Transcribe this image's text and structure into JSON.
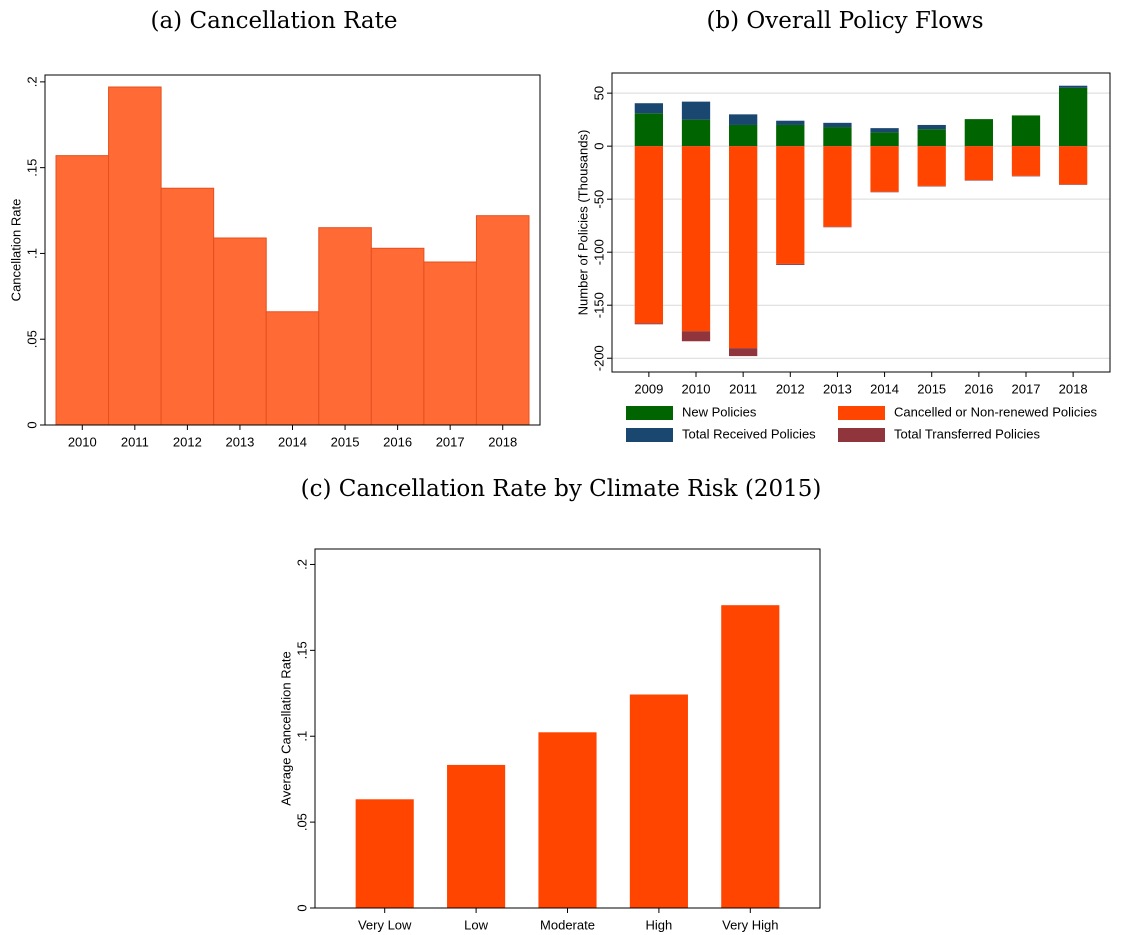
{
  "chart_data": [
    {
      "type": "bar",
      "title": "(a) Cancellation Rate",
      "ylabel": "Cancellation Rate",
      "categories": [
        "2010",
        "2011",
        "2012",
        "2013",
        "2014",
        "2015",
        "2016",
        "2017",
        "2018"
      ],
      "values": [
        0.157,
        0.197,
        0.138,
        0.109,
        0.066,
        0.115,
        0.103,
        0.095,
        0.122
      ],
      "color": "#ff6a35",
      "edgecolor": "#e5501f",
      "ylim": [
        0,
        0.204
      ],
      "yticks": [
        0,
        {
          "value": 0.05,
          "label": ".05"
        },
        {
          "value": 0.1,
          "label": ".1"
        },
        {
          "value": 0.15,
          "label": ".15"
        },
        {
          "value": 0.2,
          "label": ".2"
        }
      ],
      "grid": false
    },
    {
      "type": "bar",
      "stacked": true,
      "title": "(b) Overall Policy Flows",
      "ylabel": "Number of Policies (Thousands)",
      "categories": [
        "2009",
        "2010",
        "2011",
        "2012",
        "2013",
        "2014",
        "2015",
        "2016",
        "2017",
        "2018"
      ],
      "series": [
        {
          "name": "New Policies",
          "color": "#006400",
          "values": [
            31,
            25,
            20,
            20,
            18,
            13,
            16,
            25.5,
            29,
            55
          ]
        },
        {
          "name": "Total Received Policies",
          "color": "#1a476f",
          "values": [
            9.5,
            17,
            10,
            4,
            4,
            4,
            4,
            0,
            0,
            2
          ]
        },
        {
          "name": "Cancelled or Non-renewed Policies",
          "color": "#ff4500",
          "values": [
            -167,
            -174.5,
            -190.5,
            -111,
            -76,
            -43,
            -37.5,
            -32,
            -28,
            -36
          ]
        },
        {
          "name": "Total Transferred Policies",
          "color": "#90353b",
          "values": [
            -1,
            -9.5,
            -7.5,
            -1,
            -0.5,
            -0.5,
            -0.5,
            -0.5,
            -0.5,
            -0.5
          ]
        }
      ],
      "ylim": [
        -213,
        69
      ],
      "yticks": [
        -200,
        -150,
        -100,
        -50,
        0,
        50
      ],
      "grid": true,
      "legend": "bottom"
    },
    {
      "type": "bar",
      "title": "(c) Cancellation Rate by Climate Risk (2015)",
      "ylabel": "Average Cancellation Rate",
      "categories": [
        "Very Low",
        "Low",
        "Moderate",
        "High",
        "Very High"
      ],
      "values": [
        0.063,
        0.083,
        0.102,
        0.124,
        0.176
      ],
      "color": "#ff4500",
      "edgecolor": "#ff4500",
      "ylim": [
        0,
        0.209
      ],
      "yticks": [
        0,
        {
          "value": 0.05,
          "label": ".05"
        },
        {
          "value": 0.1,
          "label": ".1"
        },
        {
          "value": 0.15,
          "label": ".15"
        },
        {
          "value": 0.2,
          "label": ".2"
        }
      ],
      "grid": false
    }
  ]
}
